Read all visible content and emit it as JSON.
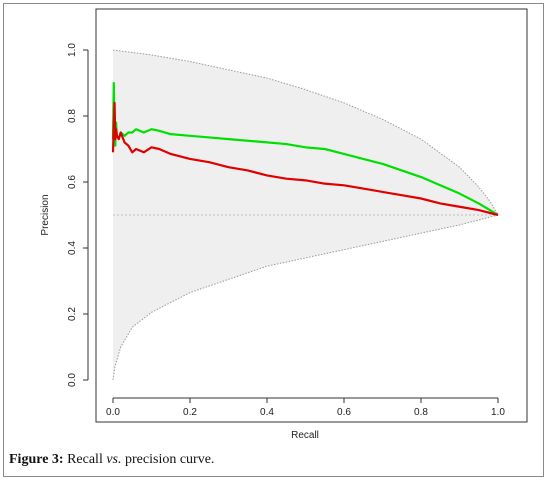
{
  "figure": {
    "caption_label": "Figure 3:",
    "caption_pre": " Recall ",
    "caption_vs": "vs.",
    "caption_post": " precision curve."
  },
  "chart_data": {
    "type": "line",
    "title": "",
    "xlabel": "Recall",
    "ylabel": "Precision",
    "xlim": [
      0,
      1
    ],
    "ylim": [
      0,
      1
    ],
    "xticks": [
      "0.0",
      "0.2",
      "0.4",
      "0.6",
      "0.8",
      "1.0"
    ],
    "yticks": [
      "0.0",
      "0.2",
      "0.4",
      "0.6",
      "0.8",
      "1.0"
    ],
    "grid": false,
    "legend": "none",
    "baseline": {
      "y": 0.5,
      "color": "#bdbdbd",
      "style": "dotted"
    },
    "band": {
      "color": "#efefef",
      "edge_color": "#9a9a9a",
      "upper": [
        [
          0.0,
          1.0
        ],
        [
          0.1,
          0.985
        ],
        [
          0.2,
          0.965
        ],
        [
          0.3,
          0.94
        ],
        [
          0.4,
          0.915
        ],
        [
          0.5,
          0.88
        ],
        [
          0.6,
          0.84
        ],
        [
          0.7,
          0.79
        ],
        [
          0.8,
          0.73
        ],
        [
          0.9,
          0.645
        ],
        [
          0.95,
          0.585
        ],
        [
          0.98,
          0.54
        ],
        [
          1.0,
          0.5
        ]
      ],
      "lower": [
        [
          0.0,
          0.0
        ],
        [
          0.005,
          0.04
        ],
        [
          0.02,
          0.1
        ],
        [
          0.05,
          0.16
        ],
        [
          0.1,
          0.205
        ],
        [
          0.2,
          0.265
        ],
        [
          0.3,
          0.305
        ],
        [
          0.4,
          0.345
        ],
        [
          0.5,
          0.37
        ],
        [
          0.6,
          0.395
        ],
        [
          0.7,
          0.42
        ],
        [
          0.8,
          0.445
        ],
        [
          0.9,
          0.47
        ],
        [
          1.0,
          0.5
        ]
      ]
    },
    "series": [
      {
        "color": "#00e000",
        "x": [
          0.0,
          0.002,
          0.004,
          0.006,
          0.008,
          0.01,
          0.015,
          0.02,
          0.03,
          0.04,
          0.05,
          0.06,
          0.08,
          0.1,
          0.12,
          0.15,
          0.2,
          0.25,
          0.3,
          0.35,
          0.4,
          0.45,
          0.5,
          0.55,
          0.6,
          0.65,
          0.7,
          0.75,
          0.8,
          0.85,
          0.9,
          0.95,
          1.0
        ],
        "y": [
          0.73,
          0.9,
          0.76,
          0.71,
          0.78,
          0.74,
          0.73,
          0.75,
          0.74,
          0.75,
          0.75,
          0.76,
          0.75,
          0.76,
          0.755,
          0.745,
          0.74,
          0.735,
          0.73,
          0.725,
          0.72,
          0.715,
          0.705,
          0.7,
          0.685,
          0.67,
          0.655,
          0.635,
          0.615,
          0.59,
          0.565,
          0.535,
          0.5
        ]
      },
      {
        "color": "#e00000",
        "x": [
          0.0,
          0.002,
          0.004,
          0.006,
          0.008,
          0.01,
          0.015,
          0.02,
          0.03,
          0.04,
          0.05,
          0.06,
          0.08,
          0.1,
          0.12,
          0.15,
          0.2,
          0.25,
          0.3,
          0.35,
          0.4,
          0.45,
          0.5,
          0.55,
          0.6,
          0.65,
          0.7,
          0.75,
          0.8,
          0.85,
          0.9,
          0.95,
          1.0
        ],
        "y": [
          0.69,
          0.77,
          0.84,
          0.73,
          0.76,
          0.74,
          0.73,
          0.75,
          0.72,
          0.71,
          0.69,
          0.7,
          0.69,
          0.705,
          0.7,
          0.685,
          0.67,
          0.66,
          0.645,
          0.635,
          0.62,
          0.61,
          0.605,
          0.595,
          0.59,
          0.58,
          0.57,
          0.56,
          0.55,
          0.535,
          0.525,
          0.515,
          0.5
        ]
      }
    ]
  }
}
